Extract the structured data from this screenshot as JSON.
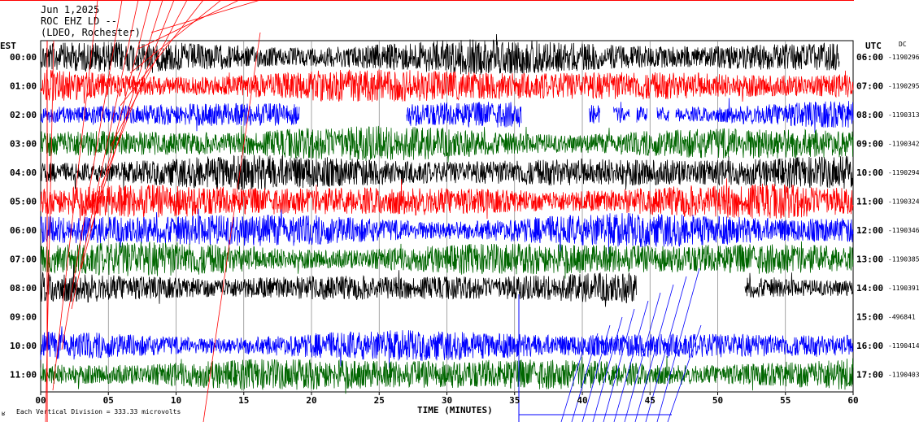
{
  "header": {
    "date": "Jun 1,2025",
    "station": "ROC EHZ LD --",
    "network": "(LDEO, Rochester)"
  },
  "left_axis_title": "EST",
  "right_axis_title": "UTC",
  "dc_label": "DC",
  "footer": {
    "xlabel": "TIME (MINUTES)",
    "scale_note": "Each Vertical Division =  333.33 microvolts",
    "corner_mark": "ʁ"
  },
  "colors": {
    "black": "#000000",
    "red": "#ff0000",
    "blue": "#0000ff",
    "green": "#006600",
    "grid": "#808080"
  },
  "chart_data": {
    "type": "line",
    "title": "",
    "xlabel": "TIME (MINUTES)",
    "ylabel": "",
    "xlim": [
      0,
      60
    ],
    "x_ticks": [
      "00",
      "05",
      "10",
      "15",
      "20",
      "25",
      "30",
      "35",
      "40",
      "45",
      "50",
      "55",
      "60"
    ],
    "rows": [
      {
        "est": "00:00",
        "utc": "06:00",
        "dc": "-1190296",
        "color": "black",
        "amp": 1.0,
        "gaps": [
          [
            59.0,
            60
          ]
        ]
      },
      {
        "est": "01:00",
        "utc": "07:00",
        "dc": "-1190295",
        "color": "red",
        "amp": 1.0,
        "gaps": []
      },
      {
        "est": "02:00",
        "utc": "08:00",
        "dc": "-1190313",
        "color": "blue",
        "amp": 0.8,
        "gaps": [
          [
            19.1,
            27.0
          ],
          [
            35.5,
            40.5
          ],
          [
            41.3,
            42.3
          ],
          [
            43.5,
            44.0
          ],
          [
            44.8,
            45.5
          ],
          [
            46.4,
            46.9
          ]
        ]
      },
      {
        "est": "03:00",
        "utc": "09:00",
        "dc": "-1190342",
        "color": "green",
        "amp": 1.0,
        "gaps": []
      },
      {
        "est": "04:00",
        "utc": "10:00",
        "dc": "-1190294",
        "color": "black",
        "amp": 1.0,
        "gaps": []
      },
      {
        "est": "05:00",
        "utc": "11:00",
        "dc": "-1190324",
        "color": "red",
        "amp": 1.0,
        "gaps": []
      },
      {
        "est": "06:00",
        "utc": "12:00",
        "dc": "-1190346",
        "color": "blue",
        "amp": 1.0,
        "gaps": []
      },
      {
        "est": "07:00",
        "utc": "13:00",
        "dc": "-1190385",
        "color": "green",
        "amp": 1.0,
        "gaps": []
      },
      {
        "est": "08:00",
        "utc": "14:00",
        "dc": "-1190391",
        "color": "black",
        "amp": 0.9,
        "gaps": [
          [
            44.0,
            52.0
          ]
        ]
      },
      {
        "est": "09:00",
        "utc": "15:00",
        "dc": "-496841",
        "color": "red",
        "amp": 0,
        "gaps": [
          [
            0,
            60
          ]
        ]
      },
      {
        "est": "10:00",
        "utc": "16:00",
        "dc": "-1190414",
        "color": "blue",
        "amp": 0.9,
        "gaps": []
      },
      {
        "est": "11:00",
        "utc": "17:00",
        "dc": "-1190403",
        "color": "green",
        "amp": 1.0,
        "gaps": []
      }
    ]
  }
}
